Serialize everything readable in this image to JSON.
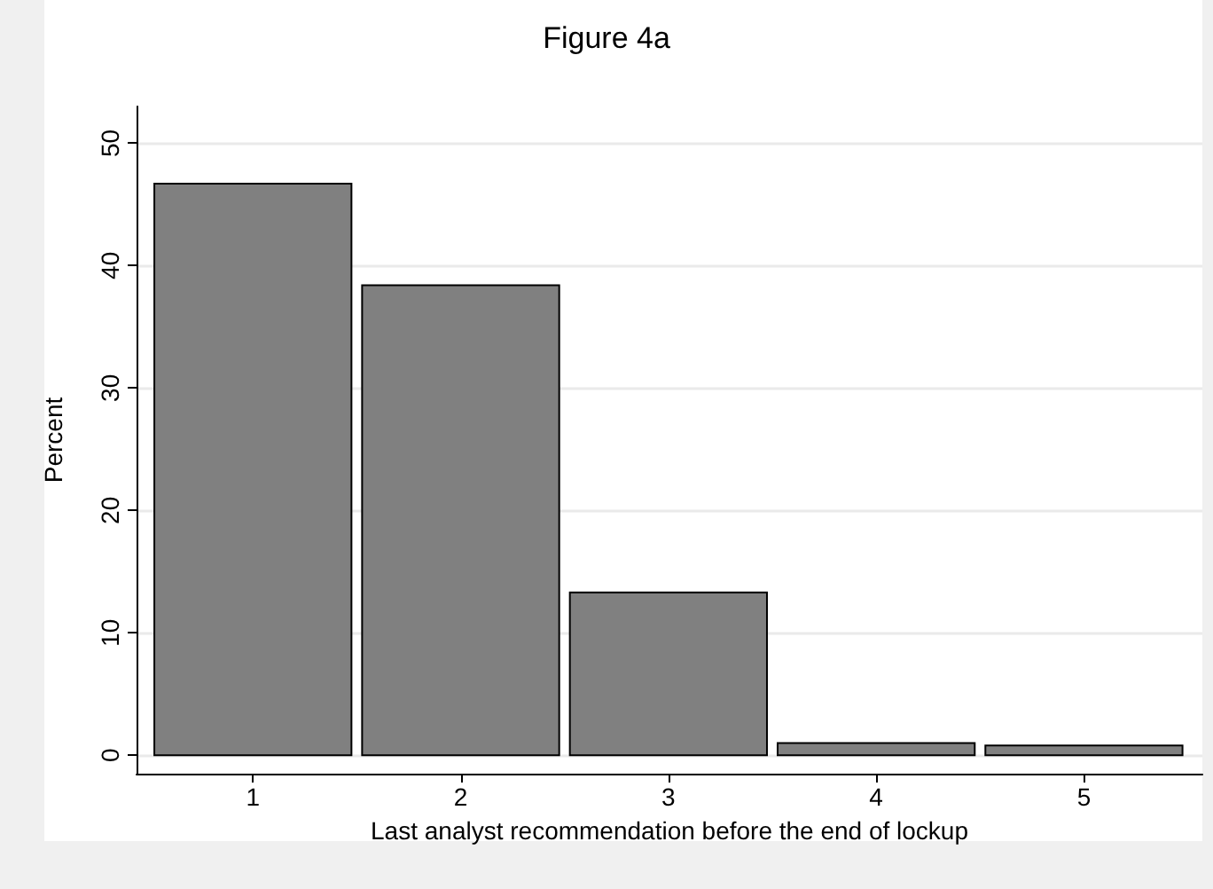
{
  "chart_data": {
    "type": "histogram",
    "title": "Figure 4a",
    "xlabel": "Last analyst recommendation before the end of lockup",
    "ylabel": "Percent",
    "bins": [
      0.5,
      1.5,
      2.5,
      3.5,
      4.5,
      5.5
    ],
    "values": [
      46.7,
      38.4,
      13.3,
      1.0,
      0.8
    ],
    "color": "#808080",
    "xlim": [
      0.44,
      5.57
    ],
    "xticks": [
      1,
      2,
      3,
      4,
      5
    ],
    "ylim": [
      -1.5,
      53
    ],
    "yticks": [
      0,
      10,
      20,
      30,
      40,
      50
    ],
    "grid": "y"
  }
}
